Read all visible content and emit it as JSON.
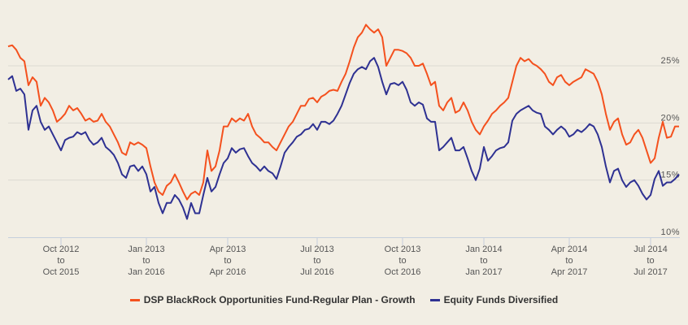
{
  "chart_data": {
    "type": "line",
    "title": "",
    "xlabel": "",
    "ylabel": "",
    "ylim": [
      10,
      28.8
    ],
    "y_ticks": [
      "10%",
      "15%",
      "20%",
      "25%"
    ],
    "y_tick_values": [
      10,
      15,
      20,
      25
    ],
    "grid": true,
    "legend_position": "bottom",
    "x_ticks": [
      {
        "index": 13,
        "lines": [
          "Oct 2012",
          "to",
          "Oct 2015"
        ]
      },
      {
        "index": 34,
        "lines": [
          "Jan 2013",
          "to",
          "Jan 2016"
        ]
      },
      {
        "index": 54,
        "lines": [
          "Apr 2013",
          "to",
          "Apr 2016"
        ]
      },
      {
        "index": 76,
        "lines": [
          "Jul 2013",
          "to",
          "Jul 2016"
        ]
      },
      {
        "index": 97,
        "lines": [
          "Oct 2013",
          "to",
          "Oct 2016"
        ]
      },
      {
        "index": 117,
        "lines": [
          "Jan 2014",
          "to",
          "Jan 2017"
        ]
      },
      {
        "index": 138,
        "lines": [
          "Apr 2014",
          "to",
          "Apr 2017"
        ]
      },
      {
        "index": 158,
        "lines": [
          "Jul 2014",
          "to",
          "Jul 2017"
        ]
      }
    ],
    "series": [
      {
        "name": "DSP BlackRock Opportunities Fund-Regular Plan - Growth",
        "color": "#f4511e",
        "values": [
          26.7,
          26.8,
          26.4,
          25.7,
          25.4,
          23.3,
          24.0,
          23.6,
          21.5,
          22.2,
          21.8,
          21.1,
          20.1,
          20.4,
          20.8,
          21.5,
          21.1,
          21.3,
          20.8,
          20.2,
          20.4,
          20.1,
          20.2,
          20.8,
          20.1,
          19.7,
          19.0,
          18.3,
          17.4,
          17.2,
          18.3,
          18.1,
          18.3,
          18.1,
          17.8,
          16.2,
          14.8,
          14.0,
          13.7,
          14.5,
          14.8,
          15.5,
          14.8,
          14.0,
          13.3,
          13.8,
          14.0,
          13.7,
          14.8,
          17.6,
          15.8,
          16.2,
          17.6,
          19.7,
          19.7,
          20.4,
          20.1,
          20.4,
          20.2,
          20.8,
          19.7,
          19.0,
          18.7,
          18.3,
          18.3,
          17.9,
          17.6,
          18.3,
          19.0,
          19.7,
          20.1,
          20.8,
          21.5,
          21.5,
          22.1,
          22.2,
          21.8,
          22.3,
          22.5,
          22.8,
          22.9,
          22.8,
          23.6,
          24.3,
          25.4,
          26.6,
          27.5,
          27.9,
          28.6,
          28.2,
          27.9,
          28.2,
          27.5,
          25.0,
          25.7,
          26.4,
          26.4,
          26.3,
          26.1,
          25.7,
          25.0,
          25.0,
          25.2,
          24.3,
          23.3,
          23.6,
          21.5,
          21.1,
          21.8,
          22.2,
          20.9,
          21.1,
          21.8,
          21.1,
          20.1,
          19.4,
          19.0,
          19.7,
          20.2,
          20.8,
          21.1,
          21.5,
          21.8,
          22.2,
          23.6,
          25.0,
          25.7,
          25.4,
          25.6,
          25.2,
          25.0,
          24.7,
          24.3,
          23.6,
          23.3,
          24.0,
          24.2,
          23.6,
          23.3,
          23.6,
          23.8,
          24.0,
          24.7,
          24.5,
          24.3,
          23.6,
          22.5,
          20.8,
          19.4,
          20.1,
          20.4,
          19.0,
          18.1,
          18.3,
          19.0,
          19.4,
          18.7,
          17.6,
          16.5,
          16.9,
          18.7,
          20.1,
          18.7,
          18.8,
          19.7,
          19.7
        ]
      },
      {
        "name": "Equity Funds Diversified",
        "color": "#2e3192",
        "values": [
          23.8,
          24.1,
          22.8,
          23.0,
          22.5,
          19.4,
          21.1,
          21.5,
          20.1,
          19.4,
          19.7,
          19.0,
          18.3,
          17.6,
          18.5,
          18.7,
          18.8,
          19.2,
          19.0,
          19.2,
          18.5,
          18.1,
          18.3,
          18.7,
          17.9,
          17.6,
          17.2,
          16.5,
          15.5,
          15.2,
          16.2,
          16.3,
          15.8,
          16.2,
          15.5,
          14.0,
          14.4,
          13.0,
          12.1,
          13.0,
          13.0,
          13.7,
          13.3,
          12.6,
          11.6,
          13.0,
          12.1,
          12.1,
          13.7,
          15.2,
          14.0,
          14.4,
          15.5,
          16.5,
          16.9,
          17.8,
          17.4,
          17.7,
          17.8,
          17.1,
          16.5,
          16.2,
          15.8,
          16.2,
          15.8,
          15.6,
          15.1,
          16.2,
          17.4,
          17.9,
          18.3,
          18.8,
          19.0,
          19.4,
          19.5,
          19.9,
          19.4,
          20.1,
          20.1,
          19.9,
          20.2,
          20.8,
          21.5,
          22.5,
          23.5,
          24.3,
          24.7,
          24.9,
          24.7,
          25.4,
          25.7,
          24.9,
          23.6,
          22.5,
          23.4,
          23.5,
          23.3,
          23.6,
          22.9,
          21.8,
          21.5,
          21.8,
          21.6,
          20.4,
          20.1,
          20.1,
          17.6,
          17.9,
          18.3,
          18.7,
          17.6,
          17.6,
          17.9,
          16.9,
          15.8,
          15.0,
          16.0,
          17.9,
          16.7,
          17.1,
          17.6,
          17.8,
          17.9,
          18.3,
          20.2,
          20.8,
          21.1,
          21.3,
          21.5,
          21.1,
          20.9,
          20.8,
          19.7,
          19.4,
          19.0,
          19.4,
          19.7,
          19.4,
          18.8,
          19.0,
          19.4,
          19.2,
          19.5,
          19.9,
          19.7,
          19.0,
          17.9,
          16.2,
          14.8,
          15.8,
          16.0,
          15.0,
          14.4,
          14.8,
          15.0,
          14.5,
          13.8,
          13.3,
          13.7,
          15.1,
          15.8,
          14.5,
          14.8,
          14.8,
          15.1,
          15.5
        ]
      }
    ]
  },
  "colors": {
    "background": "#f2eee4",
    "grid": "#dcdad2",
    "axis": "#c5cfdc"
  }
}
